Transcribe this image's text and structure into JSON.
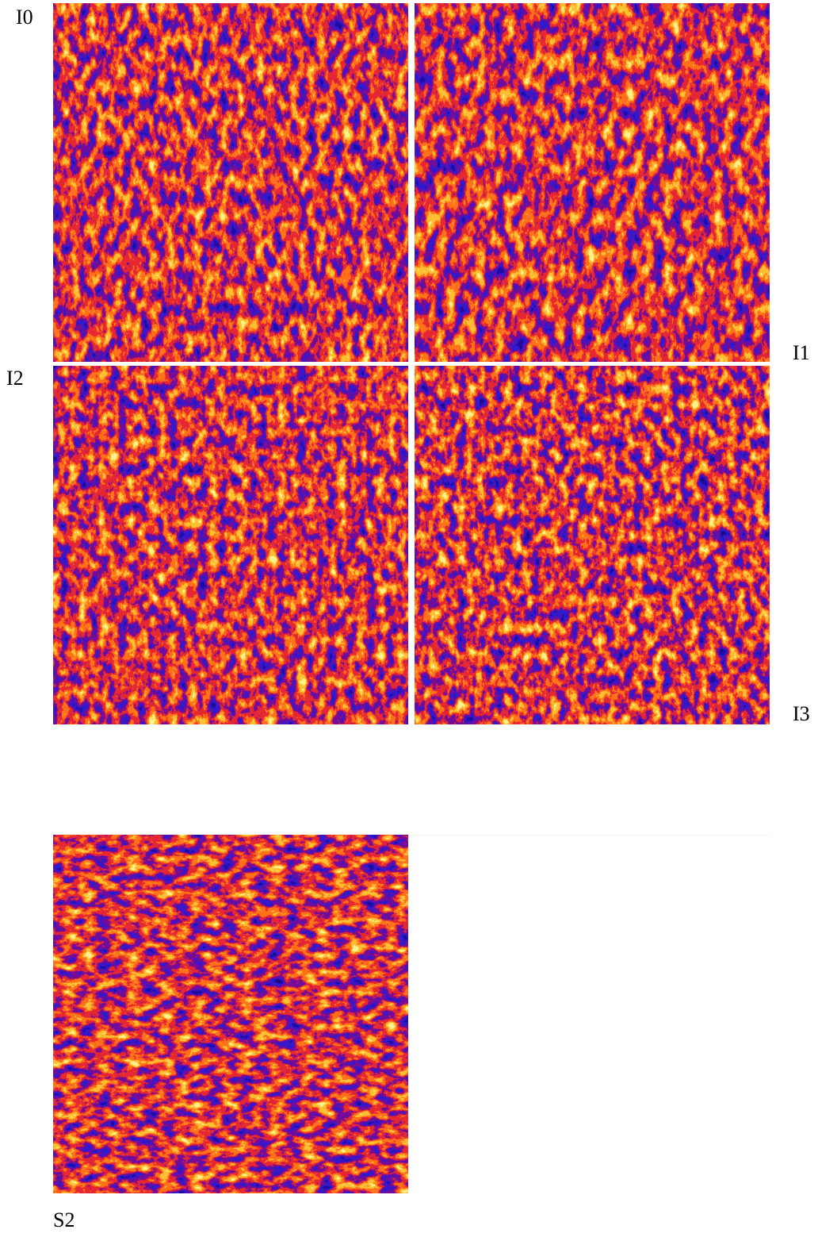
{
  "panels": [
    {
      "label": "I0"
    },
    {
      "label": "I1"
    },
    {
      "label": "I2"
    },
    {
      "label": "I3"
    },
    {
      "label": "S2"
    }
  ]
}
